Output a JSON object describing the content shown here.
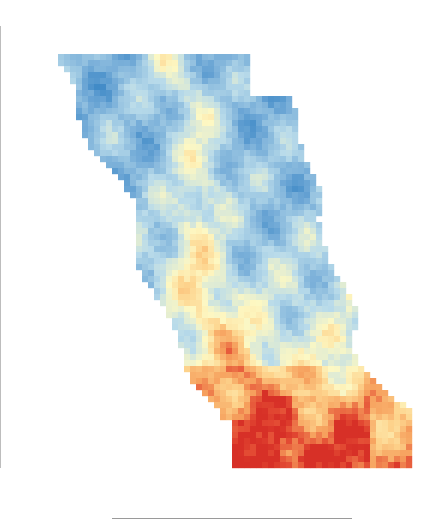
{
  "map": {
    "type": "raster-heatmap",
    "value_scale_note": "",
    "palette": {
      "very_low": "#2f7fc1",
      "low": "#6fa8d6",
      "mid_low": "#b9dbea",
      "mid": "#fdf8c3",
      "mid_high": "#fdd28b",
      "high": "#f6a05d",
      "very_high": "#e34a33",
      "extreme": "#d73027"
    }
  }
}
